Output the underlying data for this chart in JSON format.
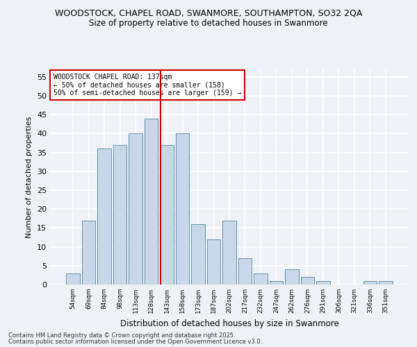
{
  "title1": "WOODSTOCK, CHAPEL ROAD, SWANMORE, SOUTHAMPTON, SO32 2QA",
  "title2": "Size of property relative to detached houses in Swanmore",
  "xlabel": "Distribution of detached houses by size in Swanmore",
  "ylabel": "Number of detached properties",
  "categories": [
    "54sqm",
    "69sqm",
    "84sqm",
    "98sqm",
    "113sqm",
    "128sqm",
    "143sqm",
    "158sqm",
    "173sqm",
    "187sqm",
    "202sqm",
    "217sqm",
    "232sqm",
    "247sqm",
    "262sqm",
    "276sqm",
    "291sqm",
    "306sqm",
    "321sqm",
    "336sqm",
    "351sqm"
  ],
  "values": [
    3,
    17,
    36,
    37,
    40,
    44,
    37,
    40,
    16,
    12,
    17,
    7,
    3,
    1,
    4,
    2,
    1,
    0,
    0,
    1,
    1
  ],
  "bar_color": "#c8d8e8",
  "bar_edge_color": "#6090b0",
  "vline_color": "#cc0000",
  "annotation_text": "WOODSTOCK CHAPEL ROAD: 137sqm\n← 50% of detached houses are smaller (158)\n50% of semi-detached houses are larger (159) →",
  "annotation_box_color": "#ffffff",
  "annotation_box_edge": "#cc0000",
  "ylim": [
    0,
    57
  ],
  "yticks": [
    0,
    5,
    10,
    15,
    20,
    25,
    30,
    35,
    40,
    45,
    50,
    55
  ],
  "footer1": "Contains HM Land Registry data © Crown copyright and database right 2025.",
  "footer2": "Contains public sector information licensed under the Open Government Licence v3.0.",
  "bg_color": "#eef2f7",
  "plot_bg_color": "#eef2f7",
  "grid_color": "#ffffff"
}
